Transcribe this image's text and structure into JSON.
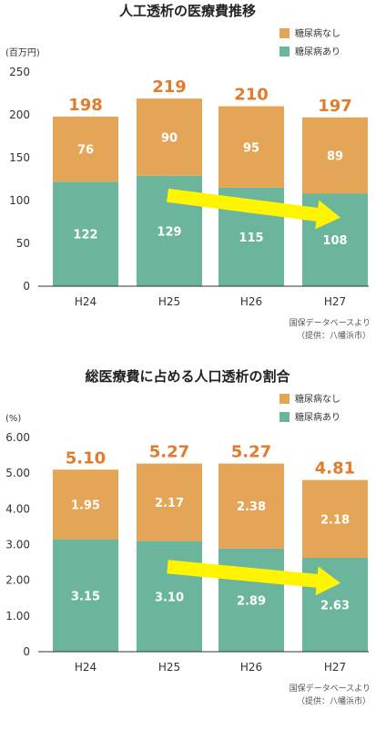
{
  "chart_data": [
    {
      "type": "bar",
      "stacked": true,
      "title": "人工透析の医療費推移",
      "unit_label": "(百万円)",
      "categories": [
        "H24",
        "H25",
        "H26",
        "H27"
      ],
      "series": [
        {
          "name": "糖尿病あり",
          "values": [
            122,
            129,
            115,
            108
          ]
        },
        {
          "name": "糖尿病なし",
          "values": [
            76,
            90,
            95,
            89
          ]
        }
      ],
      "totals": [
        "198",
        "219",
        "210",
        "197"
      ],
      "segment_labels": [
        [
          "122",
          "129",
          "115",
          "108"
        ],
        [
          "76",
          "90",
          "95",
          "89"
        ]
      ],
      "yticks": [
        "0",
        "50",
        "100",
        "150",
        "200",
        "250"
      ],
      "ytick_values": [
        0,
        50,
        100,
        150,
        200,
        250
      ],
      "ylim": [
        0,
        250
      ],
      "legend_position": "top-right",
      "grid": false,
      "source": [
        "国保データベースより",
        "（提供：八幡浜市）"
      ],
      "trend_arrow": {
        "from": 1,
        "to": 3,
        "start_value": 106,
        "end_value": 80
      }
    },
    {
      "type": "bar",
      "stacked": true,
      "title": "総医療費に占める人口透析の割合",
      "unit_label": "(%)",
      "categories": [
        "H24",
        "H25",
        "H26",
        "H27"
      ],
      "series": [
        {
          "name": "糖尿病あり",
          "values": [
            3.15,
            3.1,
            2.89,
            2.63
          ]
        },
        {
          "name": "糖尿病なし",
          "values": [
            1.95,
            2.17,
            2.38,
            2.18
          ]
        }
      ],
      "totals": [
        "5.10",
        "5.27",
        "5.27",
        "4.81"
      ],
      "segment_labels": [
        [
          "3.15",
          "3.10",
          "2.89",
          "2.63"
        ],
        [
          "1.95",
          "2.17",
          "2.38",
          "2.18"
        ]
      ],
      "yticks": [
        "0",
        "1.00",
        "2.00",
        "3.00",
        "4.00",
        "5.00",
        "6.00"
      ],
      "ytick_values": [
        0,
        1,
        2,
        3,
        4,
        5,
        6
      ],
      "ylim": [
        0,
        6
      ],
      "legend_position": "top-right",
      "grid": false,
      "source": [
        "国保データベースより",
        "（提供：八幡浜市）"
      ],
      "trend_arrow": {
        "from": 1,
        "to": 3,
        "start_value": 2.38,
        "end_value": 1.92
      }
    }
  ],
  "colors": {
    "with_diabetes": "#6bb59d",
    "without_diabetes": "#e5a556",
    "total_label": "#e37b2c",
    "arrow": "#fff500",
    "axis": "#333333"
  }
}
